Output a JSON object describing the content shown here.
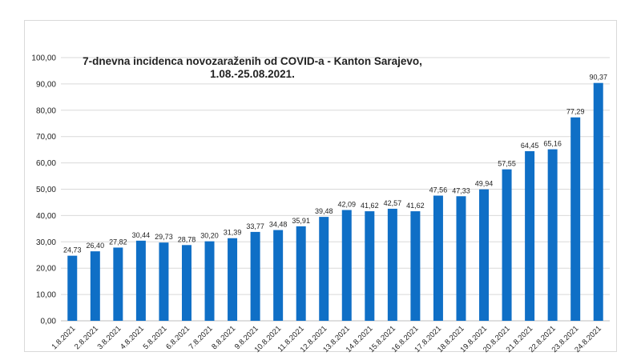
{
  "chart_data": {
    "type": "bar",
    "title_line1": "7-dnevna incidenca novozaraženih od COVID-a - Kanton Sarajevo,",
    "title_line2": "1.08.-25.08.2021.",
    "xlabel": "",
    "ylabel": "",
    "ylim": [
      0,
      100
    ],
    "y_tick_step": 10,
    "y_tick_labels": [
      "0,00",
      "10,00",
      "20,00",
      "30,00",
      "40,00",
      "50,00",
      "60,00",
      "70,00",
      "80,00",
      "90,00",
      "100,00"
    ],
    "grid": true,
    "legend": "none",
    "bar_color": "#0f6fc6",
    "categories": [
      "1.8.2021",
      "2.8.2021",
      "3.8.2021",
      "4.8.2021",
      "5.8.2021",
      "6.8.2021",
      "7.8.2021",
      "8.8.2021",
      "9.8.2021",
      "10.8.2021",
      "11.8.2021",
      "12.8.2021",
      "13.8.2021",
      "14.8.2021",
      "15.8.2021",
      "16.8.2021",
      "17.8.2021",
      "18.8.2021",
      "19.8.2021",
      "20.8.2021",
      "21.8.2021",
      "22.8.2021",
      "23.8.2021",
      "24.8.2021"
    ],
    "values": [
      24.73,
      26.4,
      27.82,
      30.44,
      29.73,
      28.78,
      30.2,
      31.39,
      33.77,
      34.48,
      35.91,
      39.48,
      42.09,
      41.62,
      42.57,
      41.62,
      47.56,
      47.33,
      49.94,
      57.55,
      64.45,
      65.16,
      77.29,
      90.37
    ],
    "data_labels": [
      "24,73",
      "26,40",
      "27,82",
      "30,44",
      "29,73",
      "28,78",
      "30,20",
      "31,39",
      "33,77",
      "34,48",
      "35,91",
      "39,48",
      "42,09",
      "41,62",
      "42,57",
      "41,62",
      "47,56",
      "47,33",
      "49,94",
      "57,55",
      "64,45",
      "65,16",
      "77,29",
      "90,37"
    ]
  }
}
